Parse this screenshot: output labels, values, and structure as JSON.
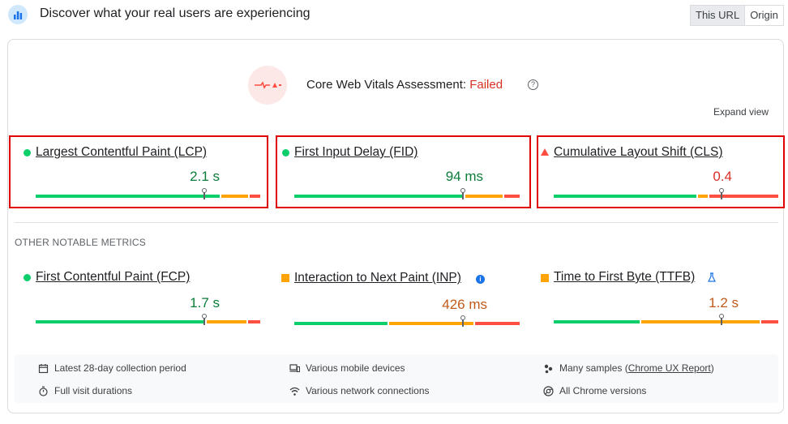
{
  "header": {
    "title": "Discover what your real users are experiencing",
    "toggle": {
      "this_url": "This URL",
      "origin": "Origin"
    }
  },
  "assessment": {
    "label": "Core Web Vitals Assessment:",
    "status": "Failed",
    "help": "?",
    "expand": "Expand view"
  },
  "core_metrics": [
    {
      "name": "Largest Contentful Paint (LCP)",
      "value": "2.1 s",
      "rating": "good",
      "icon": "green-circle-icon",
      "marker": 0.75
    },
    {
      "name": "First Input Delay (FID)",
      "value": "94 ms",
      "rating": "good",
      "icon": "green-circle-icon",
      "marker": 0.75
    },
    {
      "name": "Cumulative Layout Shift (CLS)",
      "value": "0.4",
      "rating": "poor",
      "icon": "red-triangle-icon",
      "marker": 0.75
    }
  ],
  "other_section": {
    "title": "OTHER NOTABLE METRICS"
  },
  "other_metrics": [
    {
      "name": "First Contentful Paint (FCP)",
      "value": "1.7 s",
      "rating": "good",
      "icon": "green-circle-icon",
      "marker": 0.75
    },
    {
      "name": "Interaction to Next Paint (INP)",
      "value": "426 ms",
      "rating": "needs-improvement",
      "icon": "orange-square-icon",
      "extra_icon": "info-icon",
      "marker": 0.75
    },
    {
      "name": "Time to First Byte (TTFB)",
      "value": "1.2 s",
      "rating": "needs-improvement",
      "icon": "orange-square-icon",
      "extra_icon": "flask-icon",
      "marker": 0.75
    }
  ],
  "footer": {
    "collection_period": "Latest 28-day collection period",
    "devices": "Various mobile devices",
    "samples_prefix": "Many samples (",
    "samples_link": "Chrome UX Report",
    "samples_suffix": ")",
    "durations": "Full visit durations",
    "network": "Various network connections",
    "versions": "All Chrome versions"
  },
  "colors": {
    "good": "#0cce6b",
    "needs_improvement": "#ffa400",
    "poor": "#ff4e42",
    "failed_text": "#d93025",
    "highlight_box": "#e00000"
  }
}
